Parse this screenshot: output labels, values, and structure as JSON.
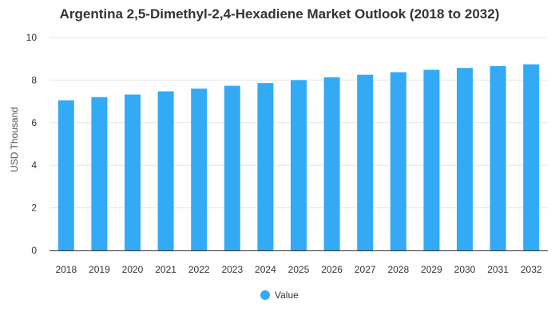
{
  "chart_data": {
    "type": "bar",
    "title": "Argentina 2,5-Dimethyl-2,4-Hexadiene Market Outlook (2018 to 2032)",
    "ylabel": "USD Thousand",
    "xlabel": "",
    "categories": [
      "2018",
      "2019",
      "2020",
      "2021",
      "2022",
      "2023",
      "2024",
      "2025",
      "2026",
      "2027",
      "2028",
      "2029",
      "2030",
      "2031",
      "2032"
    ],
    "series": [
      {
        "name": "Value",
        "values": [
          7.05,
          7.2,
          7.32,
          7.47,
          7.6,
          7.73,
          7.86,
          8.0,
          8.13,
          8.25,
          8.37,
          8.48,
          8.57,
          8.66,
          8.74
        ]
      }
    ],
    "ylim": [
      0,
      10
    ],
    "yticks": [
      0,
      2,
      4,
      6,
      8,
      10
    ],
    "grid": true,
    "legend": "bottom-center",
    "colors": {
      "bar": "#33aaf5",
      "grid": "#e6e6e6",
      "axis": "#333333"
    }
  }
}
